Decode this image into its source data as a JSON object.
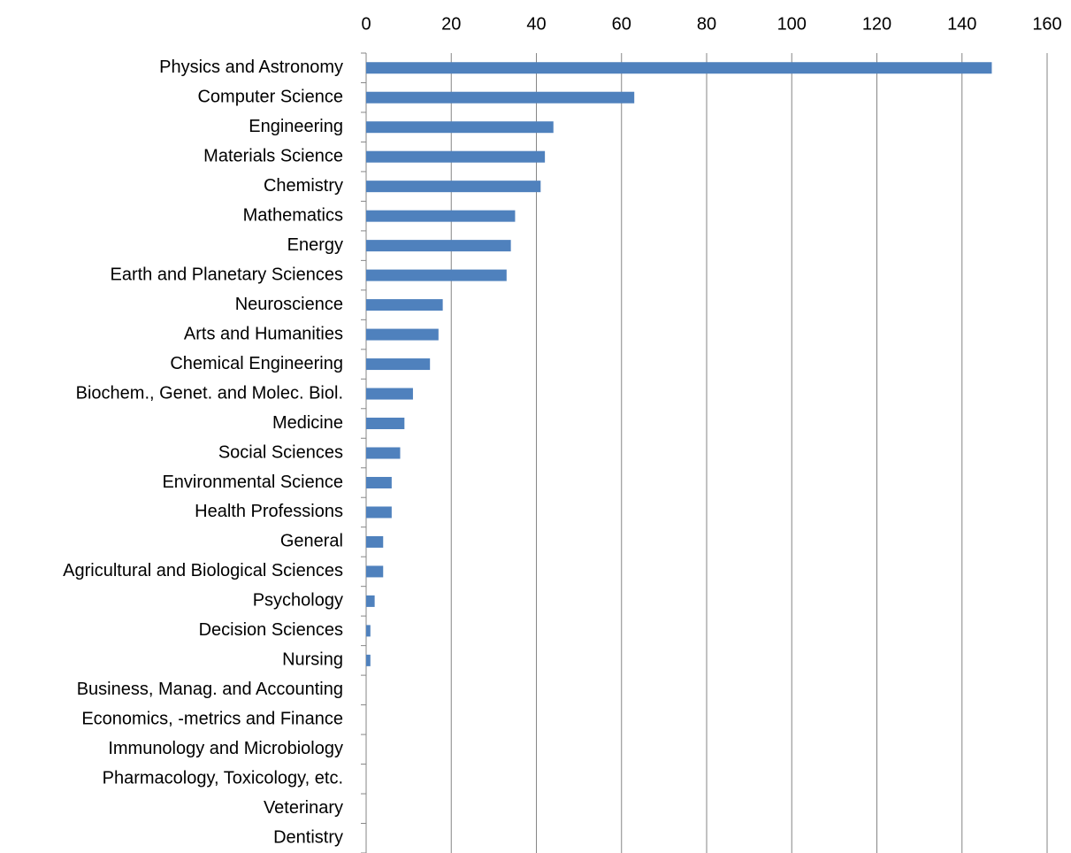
{
  "chart_data": {
    "type": "bar",
    "orientation": "horizontal",
    "categories": [
      "Physics and Astronomy",
      "Computer Science",
      "Engineering",
      "Materials Science",
      "Chemistry",
      "Mathematics",
      "Energy",
      "Earth and Planetary Sciences",
      "Neuroscience",
      "Arts and Humanities",
      "Chemical Engineering",
      "Biochem., Genet. and Molec. Biol.",
      "Medicine",
      "Social Sciences",
      "Environmental Science",
      "Health Professions",
      "General",
      "Agricultural and Biological Sciences",
      "Psychology",
      "Decision Sciences",
      "Nursing",
      "Business, Manag. and Accounting",
      "Economics, -metrics and Finance",
      "Immunology and Microbiology",
      "Pharmacology, Toxicology, etc.",
      "Veterinary",
      "Dentistry"
    ],
    "values": [
      147,
      63,
      44,
      42,
      41,
      35,
      34,
      33,
      18,
      17,
      15,
      11,
      9,
      8,
      6,
      6,
      4,
      4,
      2,
      1,
      1,
      0,
      0,
      0,
      0,
      0,
      0
    ],
    "color": "#4f81bd",
    "xlim": [
      0,
      160
    ],
    "xticks": [
      0,
      20,
      40,
      60,
      80,
      100,
      120,
      140,
      160
    ],
    "grid": true
  }
}
